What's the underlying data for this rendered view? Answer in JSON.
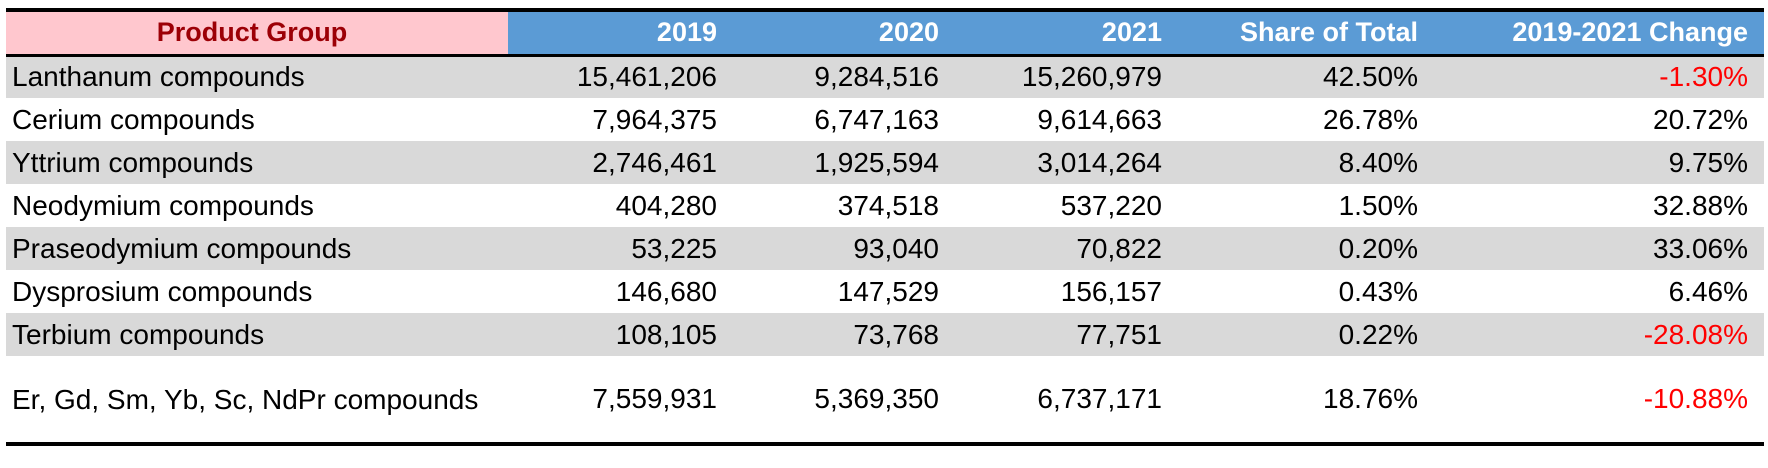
{
  "chart_data": {
    "type": "table",
    "columns": [
      "Product Group",
      "2019",
      "2020",
      "2021",
      "Share of Total",
      "2019-2021 Change"
    ],
    "rows": [
      {
        "group": "Lanthanum compounds",
        "y2019": "15,461,206",
        "y2020": "9,284,516",
        "y2021": "15,260,979",
        "share": "42.50%",
        "change": "-1.30%",
        "negative": true,
        "banded": true
      },
      {
        "group": "Cerium compounds",
        "y2019": "7,964,375",
        "y2020": "6,747,163",
        "y2021": "9,614,663",
        "share": "26.78%",
        "change": "20.72%",
        "negative": false,
        "banded": false
      },
      {
        "group": "Yttrium compounds",
        "y2019": "2,746,461",
        "y2020": "1,925,594",
        "y2021": "3,014,264",
        "share": "8.40%",
        "change": "9.75%",
        "negative": false,
        "banded": true
      },
      {
        "group": "Neodymium compounds",
        "y2019": "404,280",
        "y2020": "374,518",
        "y2021": "537,220",
        "share": "1.50%",
        "change": "32.88%",
        "negative": false,
        "banded": false
      },
      {
        "group": "Praseodymium compounds",
        "y2019": "53,225",
        "y2020": "93,040",
        "y2021": "70,822",
        "share": "0.20%",
        "change": "33.06%",
        "negative": false,
        "banded": true
      },
      {
        "group": "Dysprosium compounds",
        "y2019": "146,680",
        "y2020": "147,529",
        "y2021": "156,157",
        "share": "0.43%",
        "change": "6.46%",
        "negative": false,
        "banded": false
      },
      {
        "group": "Terbium compounds",
        "y2019": "108,105",
        "y2020": "73,768",
        "y2021": "77,751",
        "share": "0.22%",
        "change": "-28.08%",
        "negative": true,
        "banded": true
      },
      {
        "group": "Er, Gd, Sm, Yb, Sc, NdPr compounds",
        "y2019": "7,559,931",
        "y2020": "5,369,350",
        "y2021": "6,737,171",
        "share": "18.76%",
        "change": "-10.88%",
        "negative": true,
        "banded": false
      }
    ]
  },
  "colors": {
    "header_group_bg": "#ffc7ce",
    "header_group_text": "#9c0006",
    "header_bg": "#5b9bd5",
    "header_text": "#ffffff",
    "band_bg": "#d9d9d9",
    "negative_text": "#ff0000"
  }
}
